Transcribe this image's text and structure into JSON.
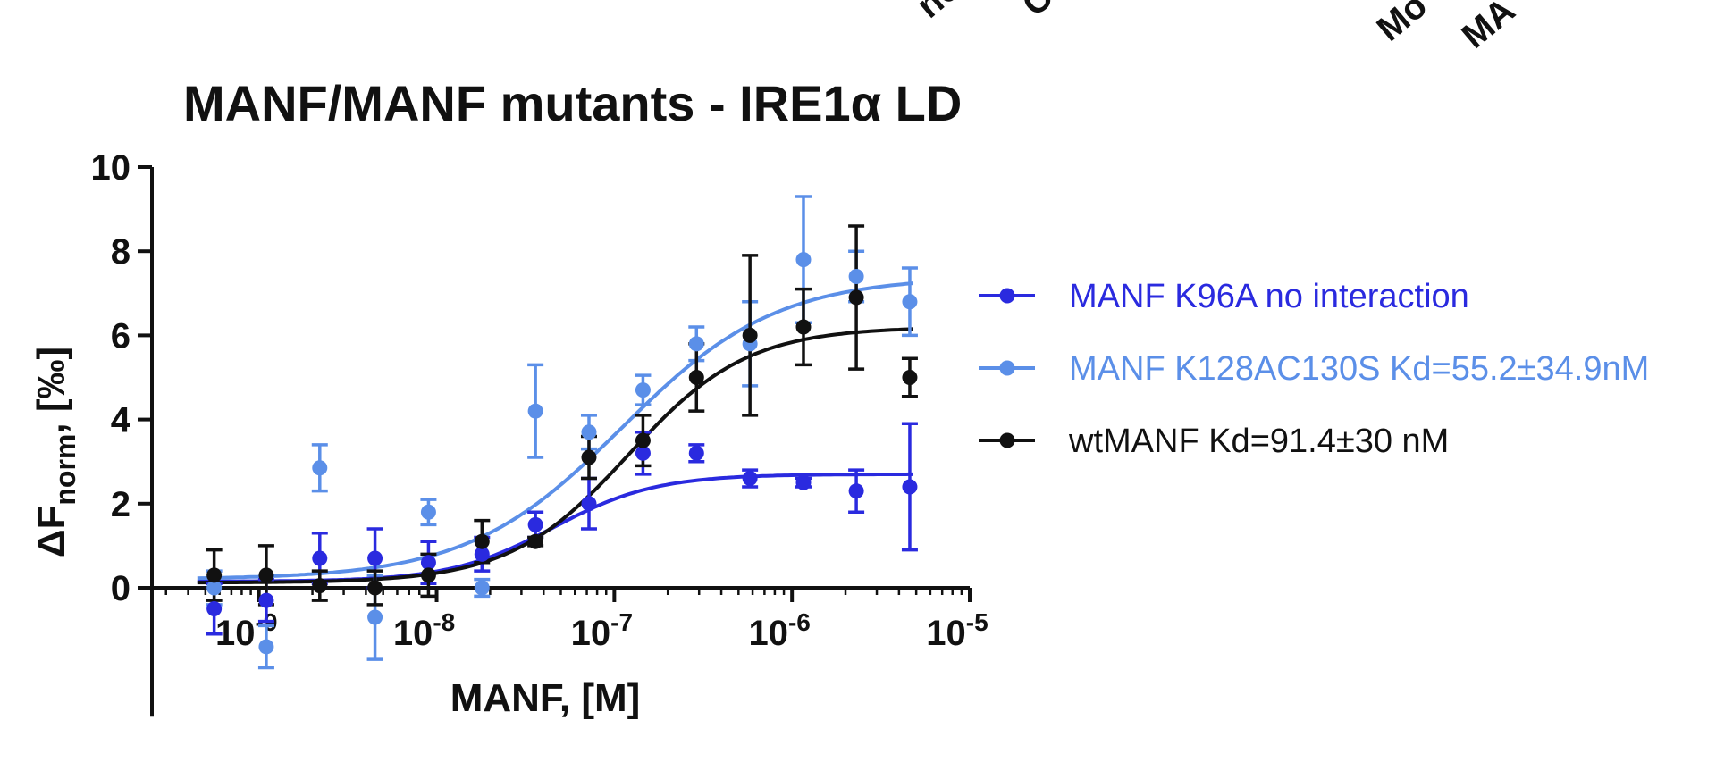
{
  "top_cutoff_labels": [
    "nc",
    "C",
    "Mo",
    "MA"
  ],
  "chart_data": {
    "type": "scatter",
    "title": "MANF/MANF mutants - IRE1α LD",
    "xlabel": "MANF, [M]",
    "ylabel": "ΔF",
    "ylabel_subscript": "norm",
    "ylabel_unit": ", [‰]",
    "x_scale": "log",
    "xlim": [
      2.5e-10,
      1e-05
    ],
    "ylim": [
      -3,
      10
    ],
    "y_ticks": [
      "0",
      "2",
      "4",
      "6",
      "8",
      "10"
    ],
    "y_tick_values": [
      0,
      2,
      4,
      6,
      8,
      10
    ],
    "x_ticks": [
      {
        "value": 1e-09,
        "base": "10",
        "exp": "-9"
      },
      {
        "value": 1e-08,
        "base": "10",
        "exp": "-8"
      },
      {
        "value": 1e-07,
        "base": "10",
        "exp": "-7"
      },
      {
        "value": 1e-06,
        "base": "10",
        "exp": "-6"
      },
      {
        "value": 1e-05,
        "base": "10",
        "exp": "-5"
      }
    ],
    "series": [
      {
        "name": "MANF K96A no interaction",
        "color": "#2a2adf",
        "x": [
          5.6e-10,
          1.1e-09,
          2.2e-09,
          4.5e-09,
          9e-09,
          1.8e-08,
          3.6e-08,
          7.2e-08,
          1.45e-07,
          2.9e-07,
          5.8e-07,
          1.16e-06,
          2.3e-06,
          4.6e-06
        ],
        "y": [
          -0.5,
          -0.3,
          0.7,
          0.7,
          0.6,
          0.8,
          1.5,
          2.0,
          3.2,
          3.2,
          2.6,
          2.5,
          2.3,
          2.4
        ],
        "err": [
          0.6,
          0.5,
          0.6,
          0.7,
          0.5,
          0.4,
          0.3,
          0.6,
          0.5,
          0.2,
          0.2,
          0.1,
          0.5,
          1.5
        ],
        "fit": {
          "bottom": 0.15,
          "top": 2.7,
          "ec50": 4.5e-08,
          "hill": 1.5
        }
      },
      {
        "name": "MANF K128AC130S Kd=55.2±34.9nM",
        "color": "#5b8fe8",
        "x": [
          5.6e-10,
          1.1e-09,
          2.2e-09,
          4.5e-09,
          9e-09,
          1.8e-08,
          3.6e-08,
          7.2e-08,
          1.45e-07,
          2.9e-07,
          5.8e-07,
          1.16e-06,
          2.3e-06,
          4.6e-06
        ],
        "y": [
          0.0,
          -1.4,
          2.85,
          -0.7,
          1.8,
          0.0,
          4.2,
          3.7,
          4.7,
          5.8,
          5.8,
          7.8,
          7.4,
          6.8
        ],
        "err": [
          0.4,
          0.5,
          0.55,
          1.0,
          0.3,
          0.2,
          1.1,
          0.4,
          0.35,
          0.4,
          1.0,
          1.5,
          0.6,
          0.8
        ],
        "fit": {
          "bottom": 0.2,
          "top": 7.4,
          "ec50": 1.1e-07,
          "hill": 1.0
        }
      },
      {
        "name": "wtMANF Kd=91.4±30 nM",
        "color": "#111111",
        "x": [
          5.6e-10,
          1.1e-09,
          2.2e-09,
          4.5e-09,
          9e-09,
          1.8e-08,
          3.6e-08,
          7.2e-08,
          1.45e-07,
          2.9e-07,
          5.8e-07,
          1.16e-06,
          2.3e-06,
          4.6e-06
        ],
        "y": [
          0.3,
          0.3,
          0.05,
          0.0,
          0.3,
          1.1,
          1.1,
          3.1,
          3.5,
          5.0,
          6.0,
          6.2,
          6.9,
          5.0
        ],
        "err": [
          0.6,
          0.7,
          0.35,
          0.4,
          0.5,
          0.5,
          0.1,
          0.5,
          0.6,
          0.8,
          1.9,
          0.9,
          1.7,
          0.45
        ],
        "fit": {
          "bottom": 0.12,
          "top": 6.2,
          "ec50": 1.2e-07,
          "hill": 1.3
        }
      }
    ],
    "legend_position": "right"
  }
}
